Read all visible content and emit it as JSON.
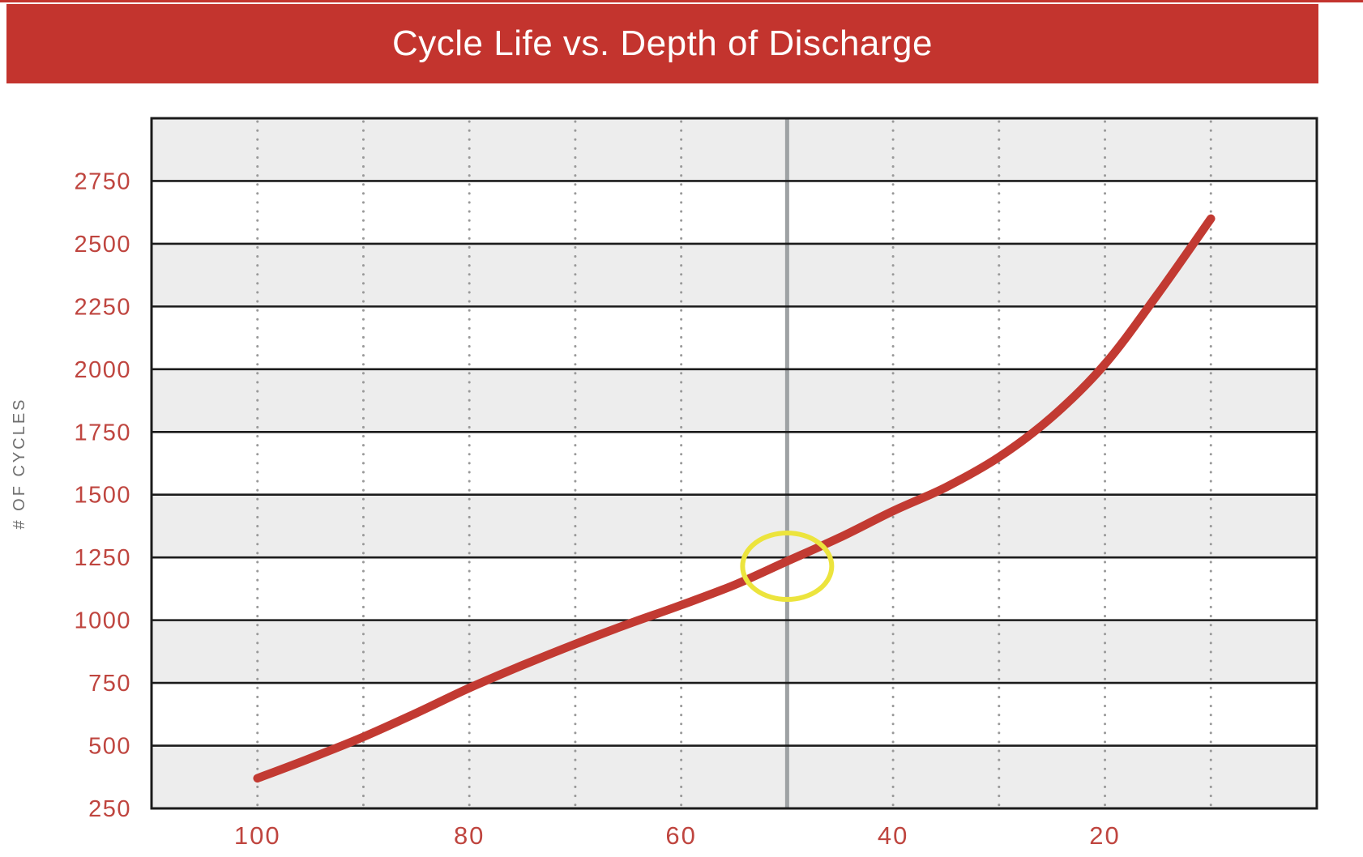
{
  "banner": {
    "title": "Cycle Life vs. Depth of Discharge",
    "bg_color": "#c3342e",
    "text_color": "#ffffff"
  },
  "chart_data": {
    "type": "line",
    "title": "Cycle Life vs. Depth of Discharge",
    "xlabel": "",
    "ylabel": "# OF CYCLES",
    "x_axis": {
      "direction": "reversed",
      "range": [
        110,
        0
      ],
      "tick_labels": [
        "100",
        "80",
        "60",
        "40",
        "20"
      ],
      "tick_values": [
        100,
        80,
        60,
        40,
        20
      ],
      "dotted_gridlines_at": [
        100,
        90,
        80,
        70,
        60,
        40,
        30,
        20,
        10
      ],
      "solid_gray_line_at": 50
    },
    "y_axis": {
      "range": [
        250,
        3000
      ],
      "tick_step": 250,
      "tick_labels": [
        "250",
        "500",
        "750",
        "1000",
        "1250",
        "1500",
        "1750",
        "2000",
        "2250",
        "2500",
        "2750"
      ],
      "tick_values": [
        250,
        500,
        750,
        1000,
        1250,
        1500,
        1750,
        2000,
        2250,
        2500,
        2750
      ]
    },
    "grid": {
      "horizontal": "solid-black-every-250",
      "vertical": "dotted-gray-every-10",
      "band_pairs_gray": [
        [
          250,
          500
        ],
        [
          750,
          1000
        ],
        [
          1250,
          1500
        ],
        [
          1750,
          2000
        ],
        [
          2250,
          2500
        ],
        [
          2750,
          3000
        ]
      ]
    },
    "series": [
      {
        "name": "cycle-life-curve",
        "color": "#c23a32",
        "points": [
          [
            100,
            370
          ],
          [
            95,
            450
          ],
          [
            90,
            535
          ],
          [
            85,
            630
          ],
          [
            80,
            730
          ],
          [
            75,
            820
          ],
          [
            70,
            905
          ],
          [
            65,
            985
          ],
          [
            60,
            1060
          ],
          [
            55,
            1140
          ],
          [
            50,
            1235
          ],
          [
            45,
            1330
          ],
          [
            40,
            1435
          ],
          [
            35,
            1530
          ],
          [
            30,
            1650
          ],
          [
            25,
            1810
          ],
          [
            20,
            2020
          ],
          [
            15,
            2300
          ],
          [
            10,
            2600
          ]
        ]
      }
    ],
    "annotation": {
      "type": "ellipse-highlight",
      "at_value": [
        50,
        1215
      ],
      "color": "#ece43d"
    },
    "colors": {
      "band_gray": "#ededed",
      "band_white": "#ffffff",
      "grid_black": "#1b1b1b",
      "dotted_gray": "#999999",
      "vertical_gray_line": "#9ea2a4",
      "tick_label_red": "#bf453f",
      "y_title_gray": "#6f6f6f"
    },
    "legend": "none"
  }
}
